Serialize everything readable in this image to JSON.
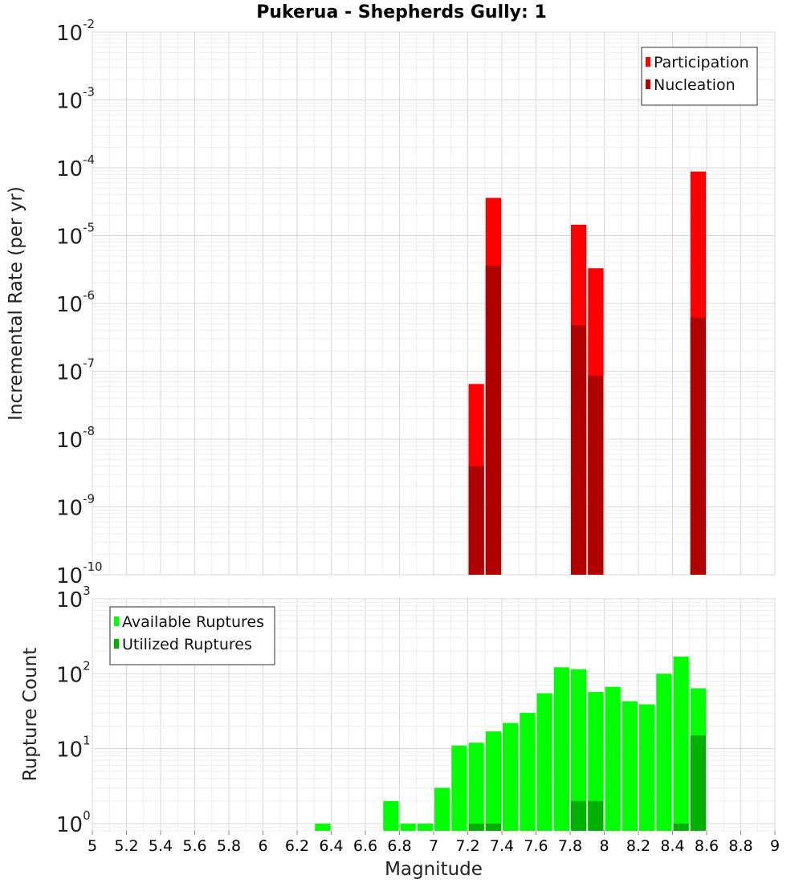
{
  "chart_data": [
    {
      "type": "bar",
      "title": "Pukerua - Shepherds Gully: 1",
      "xlabel": "Magnitude",
      "ylabel": "Incremental Rate (per yr)",
      "yscale": "log",
      "xlim": [
        5,
        9
      ],
      "ylim": [
        1e-10,
        0.01
      ],
      "y_tick_exponents": [
        -2,
        -3,
        -4,
        -5,
        -6,
        -7,
        -8,
        -9,
        -10
      ],
      "legend_position": "top-right",
      "series": [
        {
          "name": "Participation",
          "color": "#ff0000",
          "x": [
            7.25,
            7.35,
            7.85,
            7.95,
            8.55
          ],
          "values": [
            6.5e-08,
            3.6e-05,
            1.45e-05,
            3.3e-06,
            8.8e-05
          ]
        },
        {
          "name": "Nucleation",
          "color": "#b00000",
          "x": [
            7.25,
            7.35,
            7.85,
            7.95,
            8.55
          ],
          "values": [
            4e-09,
            3.6e-06,
            4.8e-07,
            8.5e-08,
            6.2e-07
          ]
        }
      ]
    },
    {
      "type": "bar",
      "xlabel": "Magnitude",
      "ylabel": "Rupture Count",
      "yscale": "log",
      "xlim": [
        5,
        9
      ],
      "ylim": [
        0.8,
        1000
      ],
      "y_tick_exponents": [
        3,
        2,
        1,
        0
      ],
      "x_ticks": [
        "5",
        "5.2",
        "5.4",
        "5.6",
        "5.8",
        "6",
        "6.2",
        "6.4",
        "6.6",
        "6.8",
        "7",
        "7.2",
        "7.4",
        "7.6",
        "7.8",
        "8",
        "8.2",
        "8.4",
        "8.6",
        "8.8",
        "9"
      ],
      "legend_position": "top-left",
      "series": [
        {
          "name": "Available Ruptures",
          "color": "#00ff00",
          "x": [
            6.35,
            6.75,
            6.85,
            6.95,
            7.05,
            7.15,
            7.25,
            7.35,
            7.45,
            7.55,
            7.65,
            7.75,
            7.85,
            7.95,
            8.05,
            8.15,
            8.25,
            8.35,
            8.45,
            8.55
          ],
          "values": [
            1,
            2,
            1,
            1,
            3,
            11,
            12,
            17,
            22,
            30,
            55,
            122,
            115,
            57,
            67,
            43,
            39,
            100,
            170,
            64
          ]
        },
        {
          "name": "Utilized Ruptures",
          "color": "#00b000",
          "x": [
            7.25,
            7.35,
            7.85,
            7.95,
            8.45,
            8.55
          ],
          "values": [
            1,
            1,
            2,
            2,
            1,
            15
          ]
        }
      ]
    }
  ]
}
